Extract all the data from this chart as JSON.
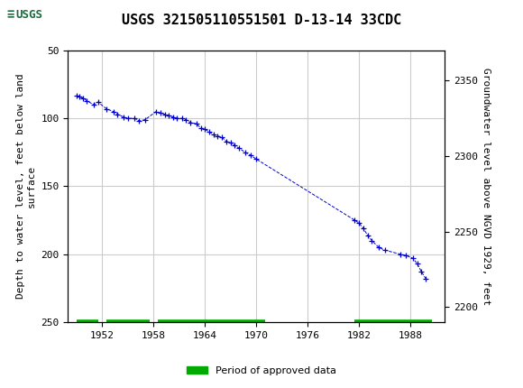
{
  "title": "USGS 321505110551501 D-13-14 33CDC",
  "ylabel_left": "Depth to water level, feet below land\nsurface",
  "ylabel_right": "Groundwater level above NGVD 1929, feet",
  "ylim_left": [
    250,
    50
  ],
  "ylim_right": [
    2190,
    2370
  ],
  "xlim": [
    1948,
    1992
  ],
  "yticks_left": [
    50,
    100,
    150,
    200,
    250
  ],
  "yticks_right": [
    2200,
    2250,
    2300,
    2350
  ],
  "xticks": [
    1952,
    1958,
    1964,
    1970,
    1976,
    1982,
    1988
  ],
  "background_color": "#ffffff",
  "plot_bg_color": "#ffffff",
  "header_color": "#1a6b3c",
  "grid_color": "#cccccc",
  "dot_color": "#0000cc",
  "green_bar_color": "#00aa00",
  "legend_label": "Period of approved data",
  "years": [
    1949.0,
    1949.3,
    1949.7,
    1950.2,
    1951.0,
    1951.5,
    1952.5,
    1953.3,
    1953.8,
    1954.5,
    1955.0,
    1955.8,
    1956.3,
    1957.0,
    1958.3,
    1958.8,
    1959.3,
    1959.8,
    1960.3,
    1960.7,
    1961.3,
    1961.8,
    1962.3,
    1963.0,
    1963.5,
    1964.0,
    1964.5,
    1965.0,
    1965.5,
    1966.0,
    1966.5,
    1967.0,
    1967.5,
    1968.0,
    1968.7,
    1969.3,
    1970.0,
    1981.5,
    1982.0,
    1982.5,
    1983.0,
    1983.5,
    1984.3,
    1985.0,
    1986.8,
    1987.5,
    1988.3,
    1988.8,
    1989.3,
    1989.8
  ],
  "depths": [
    83,
    84,
    85,
    87,
    90,
    88,
    93,
    95,
    97,
    99,
    100,
    100,
    102,
    101,
    95,
    96,
    97,
    98,
    99,
    100,
    100,
    101,
    103,
    104,
    107,
    108,
    110,
    112,
    113,
    114,
    117,
    118,
    120,
    122,
    125,
    127,
    130,
    175,
    177,
    181,
    186,
    190,
    195,
    197,
    200,
    201,
    203,
    207,
    213,
    218
  ],
  "green_segments": [
    [
      1949.0,
      1951.5
    ],
    [
      1952.5,
      1957.5
    ],
    [
      1958.5,
      1971.0
    ],
    [
      1981.5,
      1990.5
    ]
  ]
}
